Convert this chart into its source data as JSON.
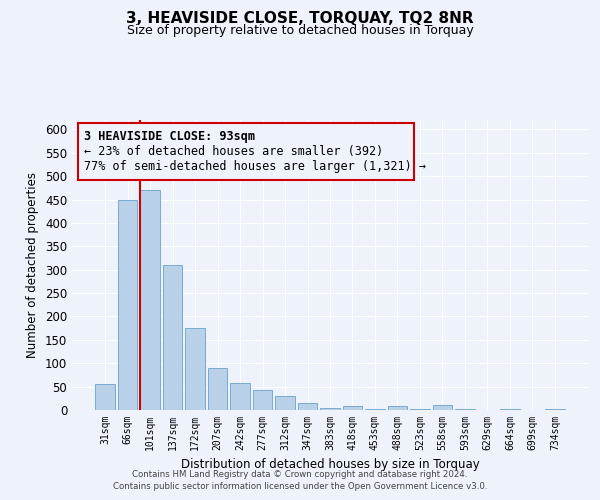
{
  "title": "3, HEAVISIDE CLOSE, TORQUAY, TQ2 8NR",
  "subtitle": "Size of property relative to detached houses in Torquay",
  "xlabel": "Distribution of detached houses by size in Torquay",
  "ylabel": "Number of detached properties",
  "categories": [
    "31sqm",
    "66sqm",
    "101sqm",
    "137sqm",
    "172sqm",
    "207sqm",
    "242sqm",
    "277sqm",
    "312sqm",
    "347sqm",
    "383sqm",
    "418sqm",
    "453sqm",
    "488sqm",
    "523sqm",
    "558sqm",
    "593sqm",
    "629sqm",
    "664sqm",
    "699sqm",
    "734sqm"
  ],
  "values": [
    55,
    450,
    470,
    310,
    175,
    90,
    58,
    42,
    30,
    15,
    5,
    8,
    2,
    8,
    2,
    10,
    2,
    0,
    3,
    0,
    2
  ],
  "bar_color": "#b8d0e8",
  "bar_edge_color": "#7aaacf",
  "vline_index": 2,
  "vline_color": "#cc0000",
  "annotation_line1": "3 HEAVISIDE CLOSE: 93sqm",
  "annotation_line2": "← 23% of detached houses are smaller (392)",
  "annotation_line3": "77% of semi-detached houses are larger (1,321) →",
  "ylim": [
    0,
    620
  ],
  "yticks": [
    0,
    50,
    100,
    150,
    200,
    250,
    300,
    350,
    400,
    450,
    500,
    550,
    600
  ],
  "background_color": "#eef2fb",
  "grid_color": "#ffffff",
  "footer_line1": "Contains HM Land Registry data © Crown copyright and database right 2024.",
  "footer_line2": "Contains public sector information licensed under the Open Government Licence v3.0."
}
